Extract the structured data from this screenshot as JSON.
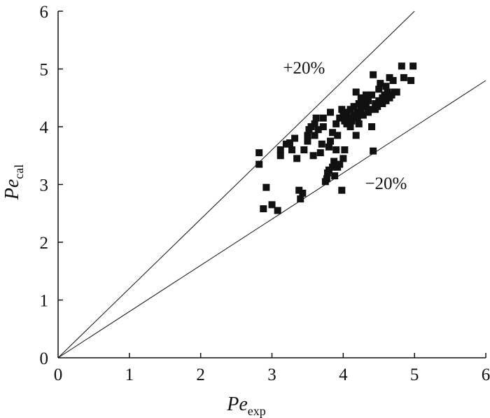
{
  "chart_data": {
    "type": "scatter",
    "title": "",
    "xlabel": {
      "main": "Pe",
      "sub": "exp"
    },
    "ylabel": {
      "main": "Pe",
      "sub": "cal"
    },
    "xlim": [
      0,
      6
    ],
    "ylim": [
      0,
      6
    ],
    "x_ticks": [
      "0",
      "1",
      "2",
      "3",
      "4",
      "5",
      "6"
    ],
    "y_ticks": [
      "0",
      "1",
      "2",
      "3",
      "4",
      "5",
      "6"
    ],
    "grid": false,
    "reference_lines": [
      {
        "slope": 1.2
      },
      {
        "slope": 0.8
      }
    ],
    "annotations": [
      {
        "text": "+20%",
        "x": 3.45,
        "y": 4.92
      },
      {
        "text": "−20%",
        "x": 4.6,
        "y": 2.92
      }
    ],
    "points": [
      [
        2.82,
        3.55
      ],
      [
        2.82,
        3.35
      ],
      [
        2.88,
        2.58
      ],
      [
        2.92,
        2.95
      ],
      [
        3.0,
        2.65
      ],
      [
        3.08,
        2.55
      ],
      [
        3.12,
        3.6
      ],
      [
        3.12,
        3.5
      ],
      [
        3.2,
        3.7
      ],
      [
        3.25,
        3.72
      ],
      [
        3.28,
        3.6
      ],
      [
        3.32,
        3.8
      ],
      [
        3.35,
        3.45
      ],
      [
        3.38,
        2.9
      ],
      [
        3.4,
        2.75
      ],
      [
        3.43,
        2.85
      ],
      [
        3.45,
        3.6
      ],
      [
        3.5,
        3.85
      ],
      [
        3.5,
        3.75
      ],
      [
        3.52,
        3.95
      ],
      [
        3.55,
        4.0
      ],
      [
        3.58,
        3.5
      ],
      [
        3.6,
        4.05
      ],
      [
        3.6,
        3.85
      ],
      [
        3.62,
        4.15
      ],
      [
        3.65,
        3.95
      ],
      [
        3.68,
        3.55
      ],
      [
        3.7,
        3.7
      ],
      [
        3.72,
        4.15
      ],
      [
        3.72,
        4.0
      ],
      [
        3.75,
        3.05
      ],
      [
        3.77,
        3.1
      ],
      [
        3.78,
        3.2
      ],
      [
        3.8,
        3.25
      ],
      [
        3.8,
        3.65
      ],
      [
        3.82,
        4.25
      ],
      [
        3.82,
        3.75
      ],
      [
        3.85,
        3.3
      ],
      [
        3.85,
        3.9
      ],
      [
        3.87,
        3.4
      ],
      [
        3.88,
        3.15
      ],
      [
        3.9,
        3.6
      ],
      [
        3.9,
        4.05
      ],
      [
        3.92,
        3.3
      ],
      [
        3.92,
        3.85
      ],
      [
        3.95,
        3.35
      ],
      [
        3.95,
        4.15
      ],
      [
        3.98,
        2.9
      ],
      [
        3.98,
        4.3
      ],
      [
        4.0,
        3.45
      ],
      [
        4.0,
        4.2
      ],
      [
        4.02,
        3.6
      ],
      [
        4.02,
        4.1
      ],
      [
        4.05,
        4.05
      ],
      [
        4.05,
        4.25
      ],
      [
        4.08,
        4.15
      ],
      [
        4.1,
        4.0
      ],
      [
        4.1,
        4.3
      ],
      [
        4.12,
        4.1
      ],
      [
        4.15,
        4.2
      ],
      [
        4.15,
        4.35
      ],
      [
        4.18,
        3.85
      ],
      [
        4.18,
        4.6
      ],
      [
        4.2,
        4.25
      ],
      [
        4.2,
        4.15
      ],
      [
        4.22,
        4.4
      ],
      [
        4.22,
        4.05
      ],
      [
        4.25,
        4.3
      ],
      [
        4.25,
        4.5
      ],
      [
        4.28,
        4.45
      ],
      [
        4.28,
        4.2
      ],
      [
        4.3,
        4.35
      ],
      [
        4.32,
        4.55
      ],
      [
        4.32,
        4.4
      ],
      [
        4.35,
        4.25
      ],
      [
        4.35,
        4.45
      ],
      [
        4.38,
        4.3
      ],
      [
        4.4,
        4.55
      ],
      [
        4.4,
        4.0
      ],
      [
        4.42,
        3.58
      ],
      [
        4.42,
        4.9
      ],
      [
        4.45,
        4.4
      ],
      [
        4.45,
        4.3
      ],
      [
        4.48,
        4.35
      ],
      [
        4.5,
        4.65
      ],
      [
        4.5,
        4.45
      ],
      [
        4.52,
        4.75
      ],
      [
        4.55,
        4.5
      ],
      [
        4.55,
        4.4
      ],
      [
        4.58,
        4.55
      ],
      [
        4.6,
        4.7
      ],
      [
        4.6,
        4.45
      ],
      [
        4.62,
        4.6
      ],
      [
        4.65,
        4.5
      ],
      [
        4.65,
        4.85
      ],
      [
        4.68,
        4.55
      ],
      [
        4.7,
        4.8
      ],
      [
        4.72,
        4.6
      ],
      [
        4.75,
        4.6
      ],
      [
        4.82,
        5.05
      ],
      [
        4.85,
        4.85
      ],
      [
        4.95,
        4.8
      ],
      [
        4.98,
        5.05
      ]
    ]
  }
}
